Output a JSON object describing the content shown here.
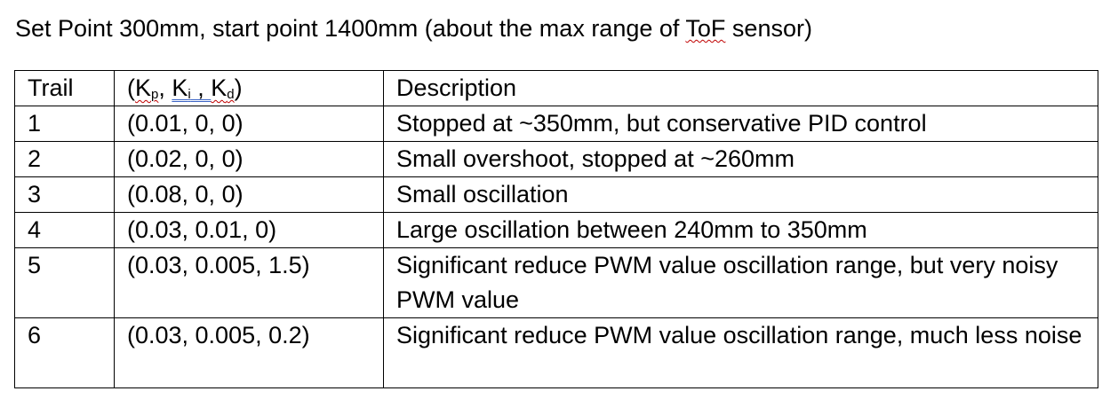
{
  "heading": {
    "before": "Set Point 300mm, start point 1400mm (about the max range of ",
    "flagged_word": "ToF",
    "after": " sensor)"
  },
  "table": {
    "headers": {
      "trail": "Trail",
      "gains": {
        "open": "(",
        "k": "K",
        "p": "p",
        "i": "i",
        "d": "d",
        "sep1": ", ",
        "sep2": " , ",
        "close": ")"
      },
      "description": "Description"
    },
    "rows": [
      {
        "trail": "1",
        "gains": "(0.01, 0, 0)",
        "description": "Stopped at ~350mm, but conservative PID control"
      },
      {
        "trail": "2",
        "gains": "(0.02, 0, 0)",
        "description": "Small overshoot, stopped at ~260mm"
      },
      {
        "trail": "3",
        "gains": "(0.08, 0, 0)",
        "description": "Small oscillation"
      },
      {
        "trail": "4",
        "gains": "(0.03, 0.01, 0)",
        "description": "Large oscillation between 240mm to 350mm"
      },
      {
        "trail": "5",
        "gains": "(0.03, 0.005, 1.5)",
        "description": "Significant reduce PWM value oscillation range, but very noisy PWM value"
      },
      {
        "trail": "6",
        "gains": "(0.03, 0.005, 0.2)",
        "description": "Significant reduce PWM value oscillation range, much less noise"
      }
    ]
  },
  "colors": {
    "spelling_underline": "#c00000",
    "grammar_underline": "#3a63c4",
    "text": "#000000",
    "border": "#000000"
  }
}
